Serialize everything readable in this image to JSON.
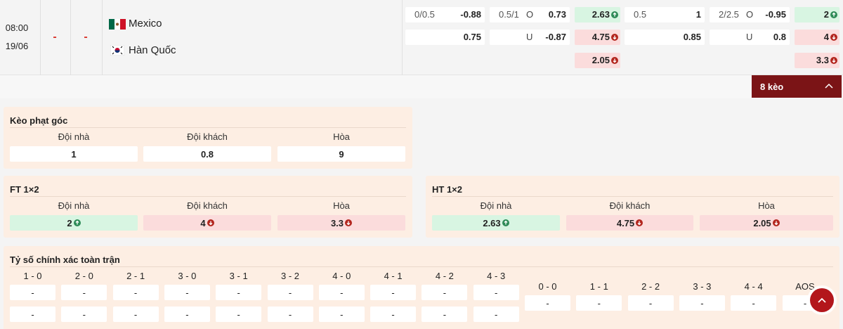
{
  "match": {
    "time": "08:00",
    "date": "19/06",
    "home_score": "-",
    "away_score": "-",
    "home": "Mexico",
    "away": "Hàn Quốc",
    "odds": [
      [
        {
          "line": "0/0.5",
          "price": "-0.88"
        },
        {
          "price": "0.75"
        }
      ],
      [
        {
          "line": "0.5/1",
          "side": "O",
          "price": "0.73"
        },
        {
          "side": "U",
          "price": "-0.87"
        }
      ],
      [
        {
          "price": "2.63",
          "trend": "up"
        },
        {
          "price": "4.75",
          "trend": "down"
        },
        {
          "price": "2.05",
          "trend": "down"
        }
      ],
      [
        {
          "line": "0.5",
          "price": "1"
        },
        {
          "price": "0.85"
        }
      ],
      [
        {
          "line": "2/2.5",
          "side": "O",
          "price": "-0.95"
        },
        {
          "side": "U",
          "price": "0.8"
        }
      ],
      [
        {
          "price": "2",
          "trend": "up"
        },
        {
          "price": "4",
          "trend": "down"
        },
        {
          "price": "3.3",
          "trend": "down"
        }
      ]
    ]
  },
  "toggle": "8 kèo",
  "sections": [
    {
      "title": "Kèo phạt góc",
      "headers": [
        "Đội nhà",
        "Đội khách",
        "Hòa"
      ],
      "cells": [
        {
          "price": "1"
        },
        {
          "price": "0.8"
        },
        {
          "price": "9"
        }
      ]
    },
    {
      "title": "FT 1×2",
      "headers": [
        "Đội nhà",
        "Đội khách",
        "Hòa"
      ],
      "cells": [
        {
          "price": "2",
          "trend": "up"
        },
        {
          "price": "4",
          "trend": "down"
        },
        {
          "price": "3.3",
          "trend": "down"
        }
      ]
    },
    {
      "title": "HT 1×2",
      "headers": [
        "Đội nhà",
        "Đội khách",
        "Hòa"
      ],
      "cells": [
        {
          "price": "2.63",
          "trend": "up"
        },
        {
          "price": "4.75",
          "trend": "down"
        },
        {
          "price": "2.05",
          "trend": "down"
        }
      ]
    }
  ],
  "exact_score": {
    "title": "Tỷ số chính xác toàn trận",
    "scores": [
      {
        "label": "1 - 0",
        "values": [
          "-",
          "-"
        ]
      },
      {
        "label": "2 - 0",
        "values": [
          "-",
          "-"
        ]
      },
      {
        "label": "2 - 1",
        "values": [
          "-",
          "-"
        ]
      },
      {
        "label": "3 - 0",
        "values": [
          "-",
          "-"
        ]
      },
      {
        "label": "3 - 1",
        "values": [
          "-",
          "-"
        ]
      },
      {
        "label": "3 - 2",
        "values": [
          "-",
          "-"
        ]
      },
      {
        "label": "4 - 0",
        "values": [
          "-",
          "-"
        ]
      },
      {
        "label": "4 - 1",
        "values": [
          "-",
          "-"
        ]
      },
      {
        "label": "4 - 2",
        "values": [
          "-",
          "-"
        ]
      },
      {
        "label": "4 - 3",
        "values": [
          "-",
          "-"
        ]
      }
    ],
    "draws": [
      {
        "label": "0 - 0",
        "values": [
          "-"
        ]
      },
      {
        "label": "1 - 1",
        "values": [
          "-"
        ]
      },
      {
        "label": "2 - 2",
        "values": [
          "-"
        ]
      },
      {
        "label": "3 - 3",
        "values": [
          "-"
        ]
      },
      {
        "label": "4 - 4",
        "values": [
          "-"
        ]
      },
      {
        "label": "AOS",
        "values": [
          "-"
        ]
      }
    ]
  }
}
